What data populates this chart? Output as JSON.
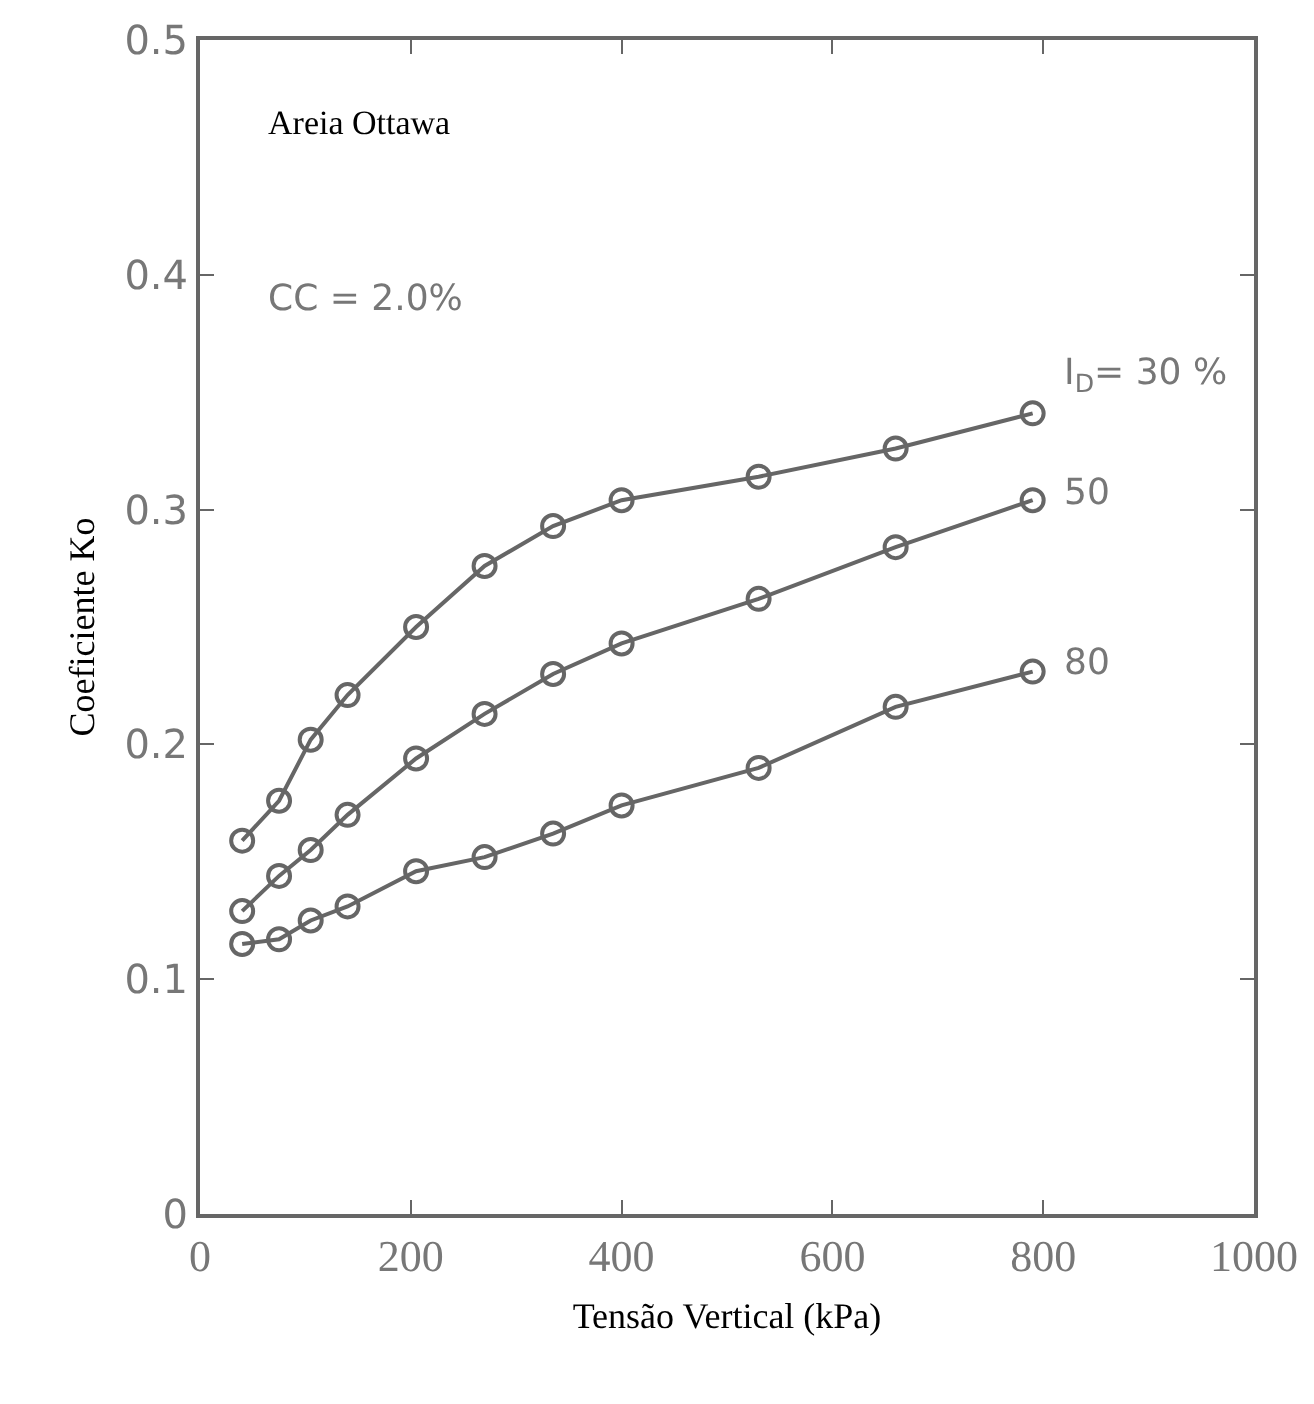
{
  "chart_data": {
    "type": "line",
    "xlabel": "Tensão Vertical (kPa)",
    "ylabel": "Coeficiente Ko",
    "annotations": [
      "Areia Ottawa",
      "CC = 2.0%"
    ],
    "x": [
      40,
      75,
      105,
      140,
      205,
      270,
      335,
      400,
      530,
      660,
      790
    ],
    "series": [
      {
        "name": "I$_{D}$= 30 %",
        "color": "#666666",
        "values": [
          0.159,
          0.176,
          0.202,
          0.221,
          0.25,
          0.276,
          0.293,
          0.304,
          0.314,
          0.326,
          0.341
        ]
      },
      {
        "name": "50",
        "color": "#666666",
        "values": [
          0.129,
          0.144,
          0.155,
          0.17,
          0.194,
          0.213,
          0.23,
          0.243,
          0.262,
          0.284,
          0.304
        ]
      },
      {
        "name": "80",
        "color": "#666666",
        "values": [
          0.115,
          0.117,
          0.125,
          0.131,
          0.146,
          0.152,
          0.162,
          0.174,
          0.19,
          0.216,
          0.231
        ]
      }
    ],
    "xlim": [
      0,
      1000
    ],
    "xticks": [
      0,
      200,
      400,
      600,
      800,
      1000
    ],
    "ylim": [
      0,
      0.5
    ],
    "yticks": [
      0,
      0.1,
      0.2,
      0.3,
      0.4,
      0.5
    ],
    "grid": false,
    "legend": false,
    "marker": "circle",
    "line_style": "solid"
  }
}
